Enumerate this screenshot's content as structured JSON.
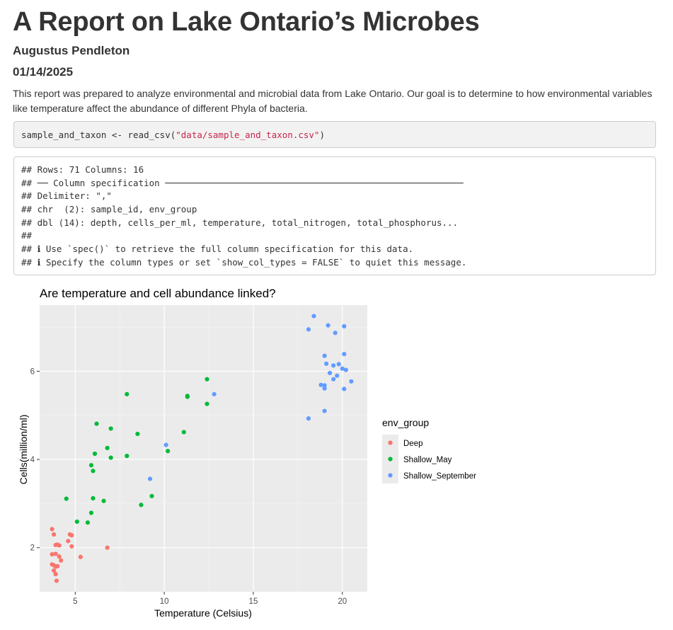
{
  "doc": {
    "title": "A Report on Lake Ontario’s Microbes",
    "author": "Augustus Pendleton",
    "date": "01/14/2025",
    "intro": "This report was prepared to analyze environmental and microbial data from Lake Ontario. Our goal is to determine to how environmental variables like temperature affect the abundance of different Phyla of bacteria."
  },
  "code": {
    "prefix": "sample_and_taxon <- read_csv(",
    "string": "\"data/sample_and_taxon.csv\"",
    "suffix": ")"
  },
  "output": {
    "lines": [
      "## Rows: 71 Columns: 16",
      "## ── Column specification ────────────────────────────────────────────────────────",
      "## Delimiter: \",\"",
      "## chr  (2): sample_id, env_group",
      "## dbl (14): depth, cells_per_ml, temperature, total_nitrogen, total_phosphorus...",
      "##",
      "## ℹ Use `spec()` to retrieve the full column specification for this data.",
      "## ℹ Specify the column types or set `show_col_types = FALSE` to quiet this message."
    ]
  },
  "chart_data": {
    "type": "scatter",
    "title": "Are temperature and cell abundance linked?",
    "xlabel": "Temperature (Celsius)",
    "ylabel": "Cells(million/ml)",
    "xlim": [
      3.0,
      21.4
    ],
    "ylim": [
      1.0,
      7.5
    ],
    "xticks": [
      5,
      10,
      15,
      20
    ],
    "yticks": [
      2,
      4,
      6
    ],
    "grid": true,
    "legend": {
      "title": "env_group",
      "placement": "right"
    },
    "series": [
      {
        "name": "Deep",
        "color": "#F8766D",
        "points": [
          [
            3.7,
            2.42
          ],
          [
            3.8,
            2.3
          ],
          [
            3.9,
            2.06
          ],
          [
            4.0,
            2.07
          ],
          [
            4.1,
            2.05
          ],
          [
            3.7,
            1.85
          ],
          [
            3.9,
            1.86
          ],
          [
            4.1,
            1.8
          ],
          [
            4.2,
            1.71
          ],
          [
            3.7,
            1.62
          ],
          [
            3.8,
            1.6
          ],
          [
            3.9,
            1.57
          ],
          [
            4.0,
            1.58
          ],
          [
            3.8,
            1.48
          ],
          [
            3.9,
            1.4
          ],
          [
            3.95,
            1.25
          ],
          [
            4.7,
            2.3
          ],
          [
            4.8,
            2.28
          ],
          [
            4.6,
            2.15
          ],
          [
            4.8,
            2.03
          ],
          [
            5.3,
            1.79
          ],
          [
            6.8,
            2.0
          ]
        ]
      },
      {
        "name": "Shallow_May",
        "color": "#00BA38",
        "points": [
          [
            4.5,
            3.11
          ],
          [
            5.1,
            2.59
          ],
          [
            5.7,
            2.57
          ],
          [
            5.9,
            2.79
          ],
          [
            6.0,
            3.12
          ],
          [
            5.9,
            3.87
          ],
          [
            6.0,
            3.74
          ],
          [
            6.1,
            4.13
          ],
          [
            6.2,
            4.81
          ],
          [
            6.6,
            3.06
          ],
          [
            6.8,
            4.26
          ],
          [
            7.0,
            4.04
          ],
          [
            7.0,
            4.7
          ],
          [
            7.9,
            5.48
          ],
          [
            7.9,
            4.08
          ],
          [
            8.5,
            4.58
          ],
          [
            8.7,
            2.97
          ],
          [
            9.3,
            3.17
          ],
          [
            10.2,
            4.19
          ],
          [
            11.1,
            4.62
          ],
          [
            11.3,
            5.42
          ],
          [
            11.3,
            5.44
          ],
          [
            12.4,
            5.26
          ],
          [
            12.4,
            5.82
          ]
        ]
      },
      {
        "name": "Shallow_September",
        "color": "#619CFF",
        "points": [
          [
            9.2,
            3.56
          ],
          [
            10.1,
            4.33
          ],
          [
            12.8,
            5.48
          ],
          [
            18.1,
            4.93
          ],
          [
            18.1,
            6.95
          ],
          [
            18.4,
            7.25
          ],
          [
            18.8,
            5.69
          ],
          [
            19.0,
            5.1
          ],
          [
            19.0,
            5.68
          ],
          [
            19.0,
            5.61
          ],
          [
            19.0,
            6.35
          ],
          [
            19.1,
            6.17
          ],
          [
            19.2,
            7.04
          ],
          [
            19.3,
            5.96
          ],
          [
            19.5,
            5.82
          ],
          [
            19.5,
            6.13
          ],
          [
            19.6,
            6.87
          ],
          [
            19.7,
            5.9
          ],
          [
            19.8,
            6.16
          ],
          [
            20.0,
            6.06
          ],
          [
            20.1,
            5.6
          ],
          [
            20.1,
            7.02
          ],
          [
            20.1,
            6.39
          ],
          [
            20.2,
            6.03
          ],
          [
            20.5,
            5.77
          ]
        ]
      }
    ]
  }
}
